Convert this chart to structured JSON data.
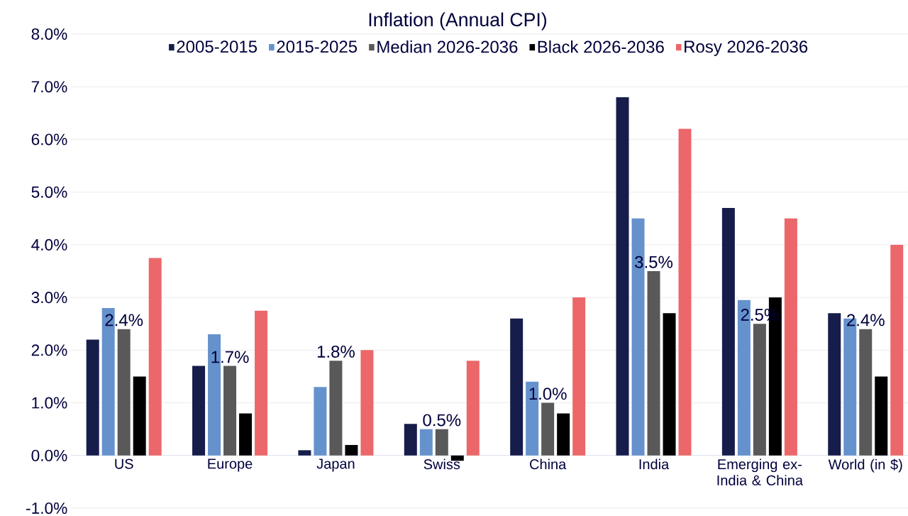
{
  "chart_data": {
    "type": "bar",
    "title": "Inflation (Annual CPI)",
    "categories": [
      "US",
      "Europe",
      "Japan",
      "Swiss",
      "China",
      "India",
      "Emerging ex-India & China",
      "World (in $)"
    ],
    "series": [
      {
        "name": "2005-2015",
        "color": "#161d4b",
        "values": [
          2.2,
          1.7,
          0.1,
          0.6,
          2.6,
          6.8,
          4.7,
          2.7
        ]
      },
      {
        "name": "2015-2025",
        "color": "#6592cc",
        "values": [
          2.8,
          2.3,
          1.3,
          0.5,
          1.4,
          4.5,
          2.95,
          2.6
        ]
      },
      {
        "name": "Median 2026-2036",
        "color": "#595959",
        "values": [
          2.4,
          1.7,
          1.8,
          0.5,
          1.0,
          3.5,
          2.5,
          2.4
        ],
        "value_labels": [
          "2.4%",
          "1.7%",
          "1.8%",
          "0.5%",
          "1.0%",
          "3.5%",
          "2.5%",
          "2.4%"
        ]
      },
      {
        "name": "Black 2026-2036",
        "color": "#000000",
        "values": [
          1.5,
          0.8,
          0.2,
          -0.1,
          0.8,
          2.7,
          3.0,
          1.5
        ]
      },
      {
        "name": "Rosy 2026-2036",
        "color": "#ec6769",
        "values": [
          3.75,
          2.75,
          2.0,
          1.8,
          3.0,
          6.2,
          4.5,
          4.0
        ]
      }
    ],
    "ylim": [
      -1,
      8
    ],
    "yticks": [
      {
        "value": -1,
        "label": "-1.0%"
      },
      {
        "value": 0,
        "label": "0.0%"
      },
      {
        "value": 1,
        "label": "1.0%"
      },
      {
        "value": 2,
        "label": "2.0%"
      },
      {
        "value": 3,
        "label": "3.0%"
      },
      {
        "value": 4,
        "label": "4.0%"
      },
      {
        "value": 5,
        "label": "5.0%"
      },
      {
        "value": 6,
        "label": "6.0%"
      },
      {
        "value": 7,
        "label": "7.0%"
      },
      {
        "value": 8,
        "label": "8.0%"
      }
    ],
    "grid": "y",
    "legend": "top"
  }
}
